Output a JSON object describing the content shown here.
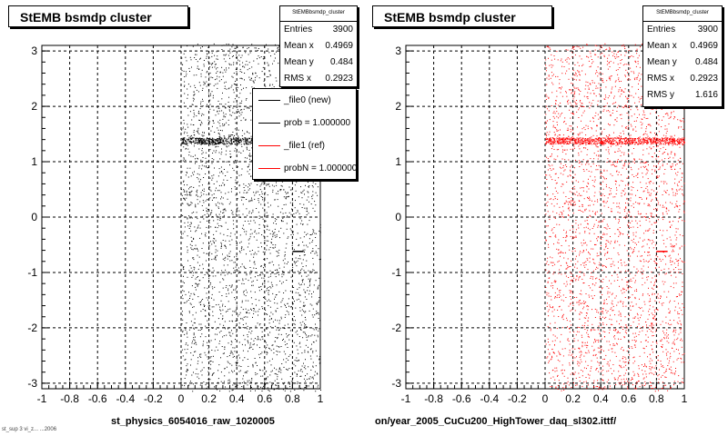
{
  "chart_data": [
    {
      "type": "scatter",
      "title": "StEMB bsmdp cluster",
      "xlim": [
        -1,
        1
      ],
      "ylim": [
        -3.1,
        3.1
      ],
      "x_ticks": [
        "-1",
        "-0.8",
        "-0.6",
        "-0.4",
        "-0.2",
        "0",
        "0.2",
        "0.4",
        "0.6",
        "0.8",
        "1"
      ],
      "y_ticks": [
        "3",
        "2",
        "1",
        "0",
        "-1",
        "-2",
        "-3"
      ],
      "grid": true,
      "xlabel": "st_physics_6054016_raw_1020005",
      "point_color": "#000000",
      "stats": {
        "header": "StEMBbsmdp_cluster",
        "rows": [
          {
            "label": "Entries",
            "value": "3900"
          },
          {
            "label": "Mean x",
            "value": "0.4969"
          },
          {
            "label": "Mean y",
            "value": "0.484"
          },
          {
            "label": "RMS x",
            "value": "0.2923"
          }
        ]
      },
      "legend": [
        {
          "label": "_file0 (new)",
          "color": "#000000"
        },
        {
          "label": "prob = 1.000000",
          "color": "#000000"
        },
        {
          "label": "_file1 (ref)",
          "color": "#ff0000"
        },
        {
          "label": "probN = 1.000000",
          "color": "#ff0000"
        }
      ],
      "distribution": {
        "entries": 3900,
        "x_range": [
          0.0,
          1.0
        ],
        "y_range": [
          -3.14,
          3.14
        ],
        "band_y": 1.38,
        "band_x": [
          0.0,
          1.0
        ],
        "short_line": {
          "x": [
            0.8,
            0.88
          ],
          "y": -0.62
        }
      }
    },
    {
      "type": "scatter",
      "title": "StEMB bsmdp cluster",
      "xlim": [
        -1,
        1
      ],
      "ylim": [
        -3.1,
        3.1
      ],
      "x_ticks": [
        "-1",
        "-0.8",
        "-0.6",
        "-0.4",
        "-0.2",
        "0",
        "0.2",
        "0.4",
        "0.6",
        "0.8",
        "1"
      ],
      "y_ticks": [
        "3",
        "2",
        "1",
        "0",
        "-1",
        "-2",
        "-3"
      ],
      "grid": true,
      "xlabel": "on/year_2005_CuCu200_HighTower_daq_sl302.ittf/",
      "point_color": "#ff0000",
      "stats": {
        "header": "StEMBbsmdp_cluster",
        "rows": [
          {
            "label": "Entries",
            "value": "3900"
          },
          {
            "label": "Mean x",
            "value": "0.4969"
          },
          {
            "label": "Mean y",
            "value": "0.484"
          },
          {
            "label": "RMS x",
            "value": "0.2923"
          },
          {
            "label": "RMS y",
            "value": "1.616"
          }
        ]
      },
      "legend": [],
      "distribution": {
        "entries": 3900,
        "x_range": [
          0.0,
          1.0
        ],
        "y_range": [
          -3.14,
          3.14
        ],
        "band_y": 1.38,
        "band_x": [
          0.0,
          1.0
        ],
        "short_line": {
          "x": [
            0.8,
            0.88
          ],
          "y": -0.62
        }
      }
    }
  ],
  "footer": "st_sup 3 vi_z...  ...2006"
}
